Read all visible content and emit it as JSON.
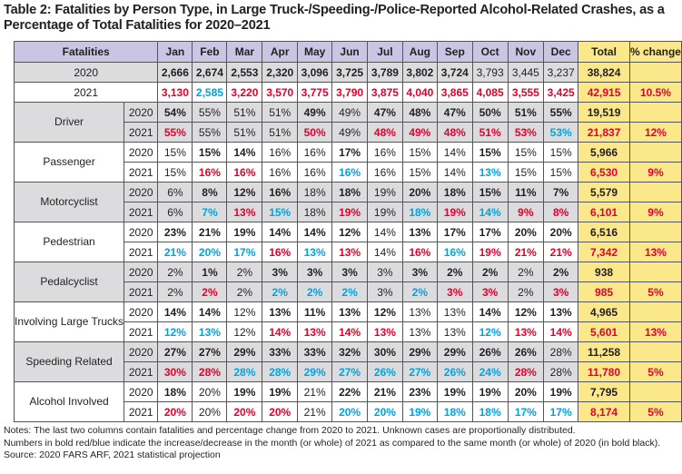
{
  "title": "Table 2: Fatalities by Person Type, in Large Truck-/Speeding-/Police-Reported Alcohol-Related Crashes, as a Percentage of Total Fatalities for 2020–2021",
  "colors": {
    "header": "#c9c5e2",
    "total_column": "#fbe88a",
    "increase": "#e4002b",
    "decrease": "#00a3e0",
    "shaded_row": "#dcdcde"
  },
  "style_legend": {
    "n": "normal",
    "b": "bold black",
    "r": "bold red (increase)",
    "u": "bold blue (decrease)"
  },
  "headers": [
    "Fatalities",
    "Jan",
    "Feb",
    "Mar",
    "Apr",
    "May",
    "Jun",
    "Jul",
    "Aug",
    "Sep",
    "Oct",
    "Nov",
    "Dec",
    "Total",
    "% change"
  ],
  "totals": [
    {
      "year": "2020",
      "values": [
        "2,666",
        "2,674",
        "2,553",
        "2,320",
        "3,096",
        "3,725",
        "3,789",
        "3,802",
        "3,724",
        "3,793",
        "3,445",
        "3,237"
      ],
      "styles": "bbbbbbbbbnnn",
      "total": "38,824",
      "change": ""
    },
    {
      "year": "2021",
      "values": [
        "3,130",
        "2,585",
        "3,220",
        "3,570",
        "3,775",
        "3,790",
        "3,875",
        "4,040",
        "3,865",
        "4,085",
        "3,555",
        "3,425"
      ],
      "styles": "rurrrrrrrrrr",
      "total": "42,915",
      "change": "10.5%"
    }
  ],
  "groups": [
    {
      "label": "Driver",
      "shaded": true,
      "rows": [
        {
          "year": "2020",
          "values": [
            "54%",
            "55%",
            "51%",
            "51%",
            "49%",
            "49%",
            "47%",
            "48%",
            "47%",
            "50%",
            "51%",
            "55%"
          ],
          "styles": "bnnnbnbbbbbb",
          "total": "19,519",
          "change": ""
        },
        {
          "year": "2021",
          "values": [
            "55%",
            "55%",
            "51%",
            "51%",
            "50%",
            "49%",
            "48%",
            "49%",
            "48%",
            "51%",
            "53%",
            "53%"
          ],
          "styles": "rnnnrnrrrrru",
          "total": "21,837",
          "change": "12%"
        }
      ]
    },
    {
      "label": "Passenger",
      "shaded": false,
      "rows": [
        {
          "year": "2020",
          "values": [
            "15%",
            "15%",
            "14%",
            "16%",
            "16%",
            "17%",
            "16%",
            "15%",
            "14%",
            "15%",
            "15%",
            "15%"
          ],
          "styles": "nbbnnbnnnbnn",
          "total": "5,966",
          "change": ""
        },
        {
          "year": "2021",
          "values": [
            "15%",
            "16%",
            "16%",
            "16%",
            "16%",
            "16%",
            "16%",
            "15%",
            "14%",
            "13%",
            "15%",
            "15%"
          ],
          "styles": "nrrnnunnnunn",
          "total": "6,530",
          "change": "9%"
        }
      ]
    },
    {
      "label": "Motorcyclist",
      "shaded": true,
      "rows": [
        {
          "year": "2020",
          "values": [
            "6%",
            "8%",
            "12%",
            "16%",
            "18%",
            "18%",
            "19%",
            "20%",
            "18%",
            "15%",
            "11%",
            "7%"
          ],
          "styles": "nbbbnbnbbbbb",
          "total": "5,579",
          "change": ""
        },
        {
          "year": "2021",
          "values": [
            "6%",
            "7%",
            "13%",
            "15%",
            "18%",
            "19%",
            "19%",
            "18%",
            "19%",
            "14%",
            "9%",
            "8%"
          ],
          "styles": "nurunrnururr",
          "total": "6,101",
          "change": "9%"
        }
      ]
    },
    {
      "label": "Pedestrian",
      "shaded": false,
      "rows": [
        {
          "year": "2020",
          "values": [
            "23%",
            "21%",
            "19%",
            "14%",
            "14%",
            "12%",
            "14%",
            "13%",
            "17%",
            "17%",
            "20%",
            "20%"
          ],
          "styles": "bbbbbbnbbbbb",
          "total": "6,516",
          "change": ""
        },
        {
          "year": "2021",
          "values": [
            "21%",
            "20%",
            "17%",
            "16%",
            "13%",
            "13%",
            "14%",
            "16%",
            "16%",
            "19%",
            "21%",
            "21%"
          ],
          "styles": "uuururnrurrr",
          "total": "7,342",
          "change": "13%"
        }
      ]
    },
    {
      "label": "Pedalcyclist",
      "shaded": true,
      "rows": [
        {
          "year": "2020",
          "values": [
            "2%",
            "1%",
            "2%",
            "3%",
            "3%",
            "3%",
            "3%",
            "3%",
            "2%",
            "2%",
            "2%",
            "2%"
          ],
          "styles": "nbnbbbnbbbnb",
          "total": "938",
          "change": ""
        },
        {
          "year": "2021",
          "values": [
            "2%",
            "2%",
            "2%",
            "2%",
            "2%",
            "2%",
            "3%",
            "2%",
            "3%",
            "3%",
            "2%",
            "3%"
          ],
          "styles": "nrnuuunurrnr",
          "total": "985",
          "change": "5%"
        }
      ]
    },
    {
      "label": "Involving Large Trucks",
      "shaded": false,
      "rows": [
        {
          "year": "2020",
          "values": [
            "14%",
            "14%",
            "12%",
            "13%",
            "11%",
            "13%",
            "12%",
            "13%",
            "13%",
            "14%",
            "12%",
            "13%"
          ],
          "styles": "bbnbbbbnnbbb",
          "total": "4,965",
          "change": ""
        },
        {
          "year": "2021",
          "values": [
            "12%",
            "13%",
            "12%",
            "14%",
            "13%",
            "14%",
            "13%",
            "13%",
            "13%",
            "12%",
            "13%",
            "14%"
          ],
          "styles": "uunrrrrnnurr",
          "total": "5,601",
          "change": "13%"
        }
      ]
    },
    {
      "label": "Speeding Related",
      "shaded": true,
      "rows": [
        {
          "year": "2020",
          "values": [
            "27%",
            "27%",
            "29%",
            "33%",
            "33%",
            "32%",
            "30%",
            "29%",
            "29%",
            "26%",
            "26%",
            "28%"
          ],
          "styles": "bbbbbbbbbbbn",
          "total": "11,258",
          "change": ""
        },
        {
          "year": "2021",
          "values": [
            "30%",
            "28%",
            "28%",
            "28%",
            "29%",
            "27%",
            "26%",
            "27%",
            "26%",
            "24%",
            "28%",
            "28%"
          ],
          "styles": "rruuuuuuuurn",
          "total": "11,780",
          "change": "5%"
        }
      ]
    },
    {
      "label": "Alcohol Involved",
      "shaded": false,
      "rows": [
        {
          "year": "2020",
          "values": [
            "18%",
            "20%",
            "19%",
            "19%",
            "21%",
            "22%",
            "21%",
            "23%",
            "19%",
            "19%",
            "20%",
            "19%"
          ],
          "styles": "bnbbnbbbbbbb",
          "total": "7,795",
          "change": ""
        },
        {
          "year": "2021",
          "values": [
            "20%",
            "20%",
            "20%",
            "20%",
            "21%",
            "20%",
            "20%",
            "19%",
            "18%",
            "18%",
            "17%",
            "17%"
          ],
          "styles": "rnrrnuuuuuuu",
          "total": "8,174",
          "change": "5%"
        }
      ]
    }
  ],
  "notes": [
    "Notes: The last two columns contain fatalities and percentage change from 2020 to 2021. Unknown cases are proportionally distributed.",
    "Numbers in bold red/blue indicate the increase/decrease in the month (or whole) of 2021 as compared to the same month (or whole) of 2020 (in bold black).",
    "Source: 2020 FARS ARF, 2021 statistical projection"
  ]
}
